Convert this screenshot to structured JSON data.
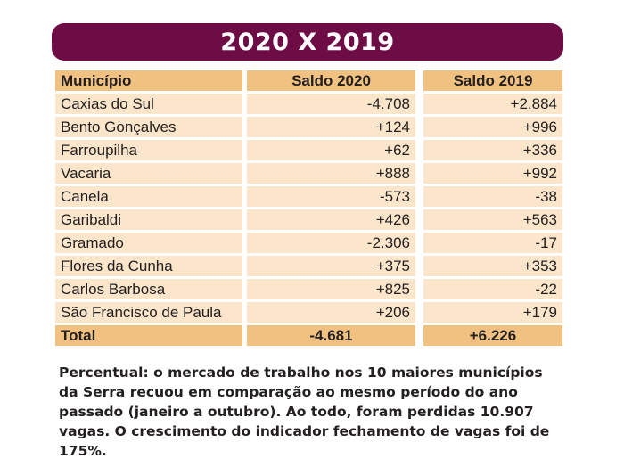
{
  "title": "2020 X 2019",
  "table": {
    "headers": [
      "Município",
      "Saldo 2020",
      "Saldo 2019"
    ],
    "rows": [
      [
        "Caxias do Sul",
        "-4.708",
        "+2.884"
      ],
      [
        "Bento Gonçalves",
        "+124",
        "+996"
      ],
      [
        "Farroupilha",
        "+62",
        "+336"
      ],
      [
        "Vacaria",
        "+888",
        "+992"
      ],
      [
        "Canela",
        "-573",
        "-38"
      ],
      [
        "Garibaldi",
        "+426",
        "+563"
      ],
      [
        "Gramado",
        "-2.306",
        "-17"
      ],
      [
        "Flores da Cunha",
        "+375",
        "+353"
      ],
      [
        "Carlos Barbosa",
        "+825",
        "-22"
      ],
      [
        "São Francisco de Paula",
        "+206",
        "+179"
      ]
    ],
    "total": [
      "Total",
      "-4.681",
      "+6.226"
    ]
  },
  "caption": "Percentual: o mercado de trabalho nos 10 maiores municípios da Serra recuou em comparação ao mesmo período do ano passado (janeiro a outubro). Ao todo, foram perdidas 10.907 vagas. O crescimento do indicador fechamento de vagas foi de 175%.",
  "colors": {
    "title_bar": "#6e0d45",
    "header_fill": "#f0c180",
    "row_fill": "#fbe6cc"
  }
}
